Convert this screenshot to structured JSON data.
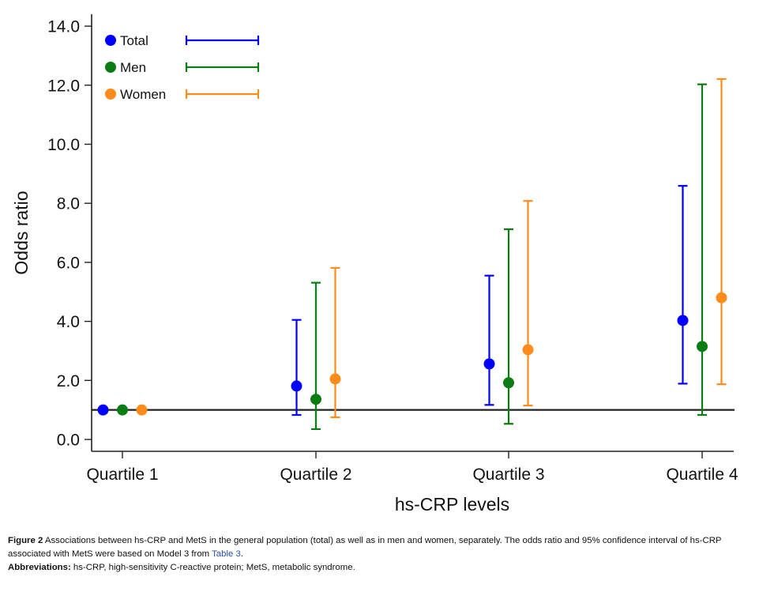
{
  "chart_data": {
    "type": "scatter",
    "subtype": "point-with-error-bars",
    "xlabel": "hs-CRP levels",
    "ylabel": "Odds ratio",
    "categories": [
      "Quartile 1",
      "Quartile 2",
      "Quartile 3",
      "Quartile 4"
    ],
    "ylim": [
      0,
      14
    ],
    "yticks": [
      0,
      2,
      4,
      6,
      8,
      10,
      12,
      14
    ],
    "ytick_labels": [
      "0.0",
      "2.0",
      "4.0",
      "6.0",
      "8.0",
      "10.0",
      "12.0",
      "14.0"
    ],
    "reference_line": 1.0,
    "grid": false,
    "legend_position": "top-left",
    "series": [
      {
        "name": "Total",
        "color": "#0000ff",
        "values": [
          1.0,
          1.81,
          2.56,
          4.03
        ],
        "lower": [
          null,
          0.83,
          1.17,
          1.89
        ],
        "upper": [
          null,
          4.05,
          5.55,
          8.59
        ]
      },
      {
        "name": "Men",
        "color": "#0a7d12",
        "values": [
          1.0,
          1.36,
          1.92,
          3.15
        ],
        "lower": [
          null,
          0.35,
          0.53,
          0.83
        ],
        "upper": [
          null,
          5.31,
          7.12,
          12.03
        ]
      },
      {
        "name": "Women",
        "color": "#ff8c1a",
        "values": [
          1.0,
          2.05,
          3.04,
          4.8
        ],
        "lower": [
          null,
          0.75,
          1.15,
          1.87
        ],
        "upper": [
          null,
          5.81,
          8.08,
          12.21
        ]
      }
    ]
  },
  "caption": {
    "figure_label": "Figure 2",
    "figure_text_1": " Associations between hs-CRP and MetS in the general population (total) as well as in men and women, separately. The odds ratio and 95% confidence interval of hs-CRP associated with MetS were based on Model 3 from ",
    "figure_link": "Table 3",
    "figure_text_2": ".",
    "abbrev_label": "Abbreviations:",
    "abbrev_text": " hs-CRP, high-sensitivity C-reactive protein; MetS, metabolic syndrome."
  }
}
